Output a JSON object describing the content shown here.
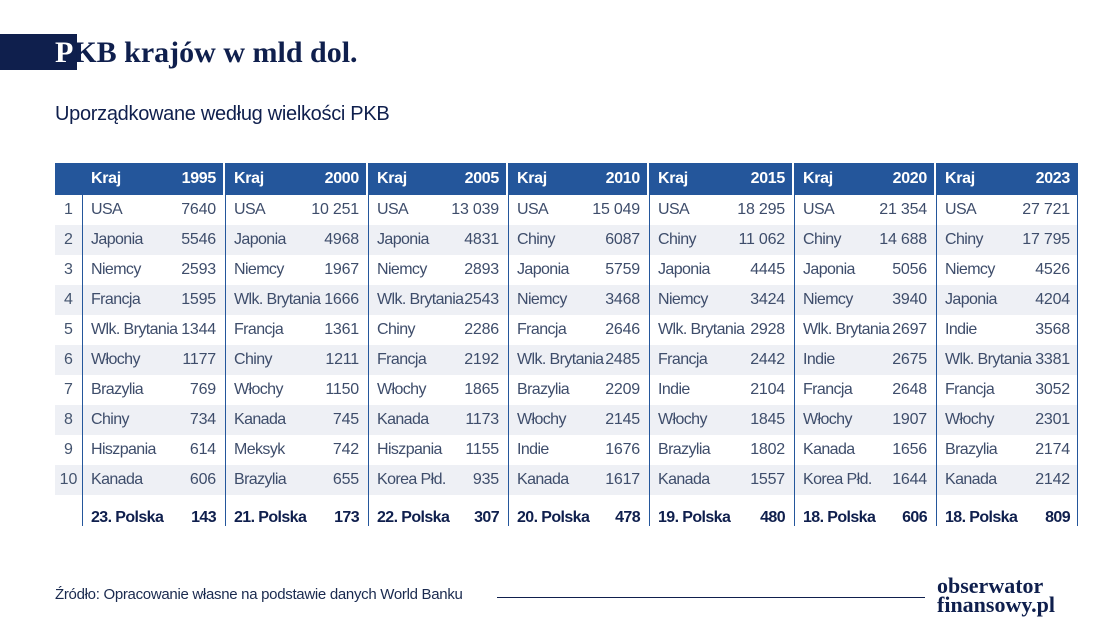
{
  "header": {
    "title_first": "P",
    "title_rest": "KB krajów w mld dol.",
    "subtitle": "Uporządkowane według wielkości PKB"
  },
  "table": {
    "country_header": "Kraj",
    "ranks": [
      "1",
      "2",
      "3",
      "4",
      "5",
      "6",
      "7",
      "8",
      "9",
      "10"
    ],
    "columns": [
      {
        "year": "1995",
        "rows": [
          [
            "USA",
            "7640"
          ],
          [
            "Japonia",
            "5546"
          ],
          [
            "Niemcy",
            "2593"
          ],
          [
            "Francja",
            "1595"
          ],
          [
            "Wlk. Brytania",
            "1344"
          ],
          [
            "Włochy",
            "1177"
          ],
          [
            "Brazylia",
            "769"
          ],
          [
            "Chiny",
            "734"
          ],
          [
            "Hiszpania",
            "614"
          ],
          [
            "Kanada",
            "606"
          ]
        ],
        "polska": [
          "23. Polska",
          "143"
        ]
      },
      {
        "year": "2000",
        "rows": [
          [
            "USA",
            "10 251"
          ],
          [
            "Japonia",
            "4968"
          ],
          [
            "Niemcy",
            "1967"
          ],
          [
            "Wlk. Brytania",
            "1666"
          ],
          [
            "Francja",
            "1361"
          ],
          [
            "Chiny",
            "1211"
          ],
          [
            "Włochy",
            "1150"
          ],
          [
            "Kanada",
            "745"
          ],
          [
            "Meksyk",
            "742"
          ],
          [
            "Brazylia",
            "655"
          ]
        ],
        "polska": [
          "21. Polska",
          "173"
        ]
      },
      {
        "year": "2005",
        "rows": [
          [
            "USA",
            "13 039"
          ],
          [
            "Japonia",
            "4831"
          ],
          [
            "Niemcy",
            "2893"
          ],
          [
            "Wlk. Brytania",
            "2543"
          ],
          [
            "Chiny",
            "2286"
          ],
          [
            "Francja",
            "2192"
          ],
          [
            "Włochy",
            "1865"
          ],
          [
            "Kanada",
            "1173"
          ],
          [
            "Hiszpania",
            "1155"
          ],
          [
            "Korea Płd.",
            "935"
          ]
        ],
        "polska": [
          "22. Polska",
          "307"
        ]
      },
      {
        "year": "2010",
        "rows": [
          [
            "USA",
            "15 049"
          ],
          [
            "Chiny",
            "6087"
          ],
          [
            "Japonia",
            "5759"
          ],
          [
            "Niemcy",
            "3468"
          ],
          [
            "Francja",
            "2646"
          ],
          [
            "Wlk. Brytania",
            "2485"
          ],
          [
            "Brazylia",
            "2209"
          ],
          [
            "Włochy",
            "2145"
          ],
          [
            "Indie",
            "1676"
          ],
          [
            "Kanada",
            "1617"
          ]
        ],
        "polska": [
          "20. Polska",
          "478"
        ]
      },
      {
        "year": "2015",
        "rows": [
          [
            "USA",
            "18 295"
          ],
          [
            "Chiny",
            "11 062"
          ],
          [
            "Japonia",
            "4445"
          ],
          [
            "Niemcy",
            "3424"
          ],
          [
            "Wlk. Brytania",
            "2928"
          ],
          [
            "Francja",
            "2442"
          ],
          [
            "Indie",
            "2104"
          ],
          [
            "Włochy",
            "1845"
          ],
          [
            "Brazylia",
            "1802"
          ],
          [
            "Kanada",
            "1557"
          ]
        ],
        "polska": [
          "19. Polska",
          "480"
        ]
      },
      {
        "year": "2020",
        "rows": [
          [
            "USA",
            "21 354"
          ],
          [
            "Chiny",
            "14 688"
          ],
          [
            "Japonia",
            "5056"
          ],
          [
            "Niemcy",
            "3940"
          ],
          [
            "Wlk. Brytania",
            "2697"
          ],
          [
            "Indie",
            "2675"
          ],
          [
            "Francja",
            "2648"
          ],
          [
            "Włochy",
            "1907"
          ],
          [
            "Kanada",
            "1656"
          ],
          [
            "Korea Płd.",
            "1644"
          ]
        ],
        "polska": [
          "18. Polska",
          "606"
        ]
      },
      {
        "year": "2023",
        "rows": [
          [
            "USA",
            "27 721"
          ],
          [
            "Chiny",
            "17 795"
          ],
          [
            "Niemcy",
            "4526"
          ],
          [
            "Japonia",
            "4204"
          ],
          [
            "Indie",
            "3568"
          ],
          [
            "Wlk. Brytania",
            "3381"
          ],
          [
            "Francja",
            "3052"
          ],
          [
            "Włochy",
            "2301"
          ],
          [
            "Brazylia",
            "2174"
          ],
          [
            "Kanada",
            "2142"
          ]
        ],
        "polska": [
          "18. Polska",
          "809"
        ]
      }
    ]
  },
  "footer": {
    "source": "Źródło: Opracowanie własne na podstawie danych World Banku",
    "logo_line1": "obserwator",
    "logo_line2": "finansowy.pl"
  },
  "colors": {
    "navy": "#0f1f4d",
    "header_blue": "#24569b",
    "stripe": "#eef0f5"
  }
}
